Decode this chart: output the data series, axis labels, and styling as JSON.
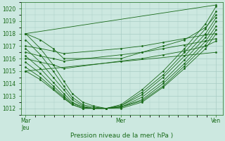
{
  "title": "",
  "xlabel": "Pression niveau de la mer( hPa )",
  "ylabel": "",
  "bg_color": "#cce8e0",
  "grid_color": "#a8ccc4",
  "line_color": "#1a6b1a",
  "ylim": [
    1011.5,
    1020.5
  ],
  "yticks": [
    1012,
    1013,
    1014,
    1015,
    1016,
    1017,
    1018,
    1019,
    1020
  ],
  "xtick_labels": [
    "Mar\nJeu",
    "Mer",
    "Ven"
  ],
  "xtick_positions": [
    0.0,
    0.45,
    0.9
  ],
  "lines": [
    {
      "x": [
        0.0,
        0.07,
        0.13,
        0.18,
        0.22,
        0.27,
        0.32,
        0.38,
        0.45,
        0.55,
        0.65,
        0.75,
        0.85,
        0.9
      ],
      "y": [
        1018.0,
        1016.8,
        1015.5,
        1014.2,
        1013.2,
        1012.5,
        1012.2,
        1012.0,
        1012.3,
        1013.5,
        1015.0,
        1016.8,
        1018.8,
        1020.2
      ]
    },
    {
      "x": [
        0.0,
        0.07,
        0.13,
        0.18,
        0.22,
        0.27,
        0.32,
        0.38,
        0.45,
        0.55,
        0.65,
        0.75,
        0.85,
        0.9
      ],
      "y": [
        1017.5,
        1016.3,
        1015.0,
        1013.8,
        1012.9,
        1012.3,
        1012.1,
        1012.0,
        1012.2,
        1013.3,
        1014.7,
        1016.5,
        1018.4,
        1019.8
      ]
    },
    {
      "x": [
        0.0,
        0.07,
        0.13,
        0.18,
        0.22,
        0.27,
        0.32,
        0.38,
        0.45,
        0.55,
        0.65,
        0.75,
        0.85,
        0.9
      ],
      "y": [
        1016.8,
        1015.7,
        1014.5,
        1013.5,
        1012.7,
        1012.2,
        1012.0,
        1012.0,
        1012.2,
        1013.1,
        1014.5,
        1016.2,
        1018.0,
        1019.3
      ]
    },
    {
      "x": [
        0.0,
        0.07,
        0.13,
        0.18,
        0.22,
        0.27,
        0.32,
        0.38,
        0.45,
        0.55,
        0.65,
        0.75,
        0.85,
        0.9
      ],
      "y": [
        1016.2,
        1015.2,
        1014.1,
        1013.2,
        1012.5,
        1012.1,
        1012.0,
        1012.0,
        1012.1,
        1012.9,
        1014.2,
        1015.9,
        1017.7,
        1019.0
      ]
    },
    {
      "x": [
        0.0,
        0.07,
        0.13,
        0.18,
        0.22,
        0.27,
        0.32,
        0.38,
        0.45,
        0.55,
        0.65,
        0.75,
        0.85,
        0.9
      ],
      "y": [
        1015.7,
        1014.8,
        1013.8,
        1013.0,
        1012.4,
        1012.1,
        1012.0,
        1012.0,
        1012.1,
        1012.7,
        1014.0,
        1015.6,
        1017.4,
        1018.6
      ]
    },
    {
      "x": [
        0.0,
        0.07,
        0.13,
        0.18,
        0.22,
        0.27,
        0.32,
        0.38,
        0.45,
        0.55,
        0.65,
        0.75,
        0.85,
        0.9
      ],
      "y": [
        1015.3,
        1014.5,
        1013.6,
        1012.9,
        1012.3,
        1012.0,
        1012.0,
        1012.0,
        1012.1,
        1012.6,
        1013.8,
        1015.4,
        1017.1,
        1018.3
      ]
    },
    {
      "x": [
        0.0,
        0.07,
        0.13,
        0.18,
        0.22,
        0.27,
        0.32,
        0.38,
        0.45,
        0.55,
        0.65,
        0.75,
        0.85,
        0.9
      ],
      "y": [
        1015.0,
        1014.3,
        1013.5,
        1012.8,
        1012.3,
        1012.0,
        1012.0,
        1012.0,
        1012.0,
        1012.5,
        1013.7,
        1015.2,
        1016.8,
        1018.0
      ]
    },
    {
      "x": [
        0.0,
        0.07,
        0.13,
        0.18,
        0.45,
        0.55,
        0.65,
        0.75,
        0.85,
        0.9
      ],
      "y": [
        1018.0,
        1017.5,
        1016.8,
        1016.0,
        1016.0,
        1016.5,
        1017.0,
        1017.5,
        1018.5,
        1019.5
      ]
    },
    {
      "x": [
        0.0,
        0.07,
        0.13,
        0.18,
        0.45,
        0.55,
        0.65,
        0.75,
        0.85,
        0.9
      ],
      "y": [
        1016.0,
        1015.7,
        1015.5,
        1015.2,
        1015.8,
        1016.0,
        1016.3,
        1016.6,
        1017.0,
        1017.4
      ]
    },
    {
      "x": [
        0.0,
        0.07,
        0.13,
        0.18,
        0.45,
        0.55,
        0.65,
        0.75,
        0.85,
        0.9
      ],
      "y": [
        1016.5,
        1016.2,
        1016.0,
        1015.8,
        1016.3,
        1016.5,
        1016.8,
        1017.1,
        1017.4,
        1017.6
      ]
    },
    {
      "x": [
        0.0,
        0.07,
        0.13,
        0.18,
        0.45,
        0.55,
        0.65,
        0.75,
        0.85,
        0.9
      ],
      "y": [
        1017.0,
        1016.8,
        1016.6,
        1016.4,
        1016.8,
        1017.0,
        1017.3,
        1017.6,
        1017.9,
        1018.0
      ]
    },
    {
      "x": [
        0.0,
        0.9
      ],
      "y": [
        1018.0,
        1020.3
      ]
    },
    {
      "x": [
        0.0,
        0.9
      ],
      "y": [
        1015.0,
        1016.5
      ]
    }
  ]
}
